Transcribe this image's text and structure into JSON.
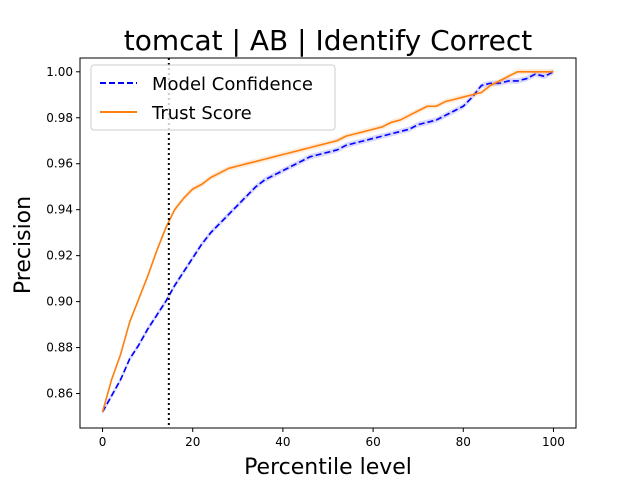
{
  "chart_data": {
    "type": "line",
    "title": "tomcat | AB | Identify Correct",
    "xlabel": "Percentile level",
    "ylabel": "Precision",
    "xlim": [
      -5,
      105
    ],
    "ylim": [
      0.845,
      1.006
    ],
    "xticks": [
      0,
      20,
      40,
      60,
      80,
      100
    ],
    "yticks": [
      0.86,
      0.88,
      0.9,
      0.92,
      0.94,
      0.96,
      0.98,
      1.0
    ],
    "xtick_labels": [
      "0",
      "20",
      "40",
      "60",
      "80",
      "100"
    ],
    "ytick_labels": [
      "0.86",
      "0.88",
      "0.90",
      "0.92",
      "0.94",
      "0.96",
      "0.98",
      "1.00"
    ],
    "grid": false,
    "legend_position": "upper-left",
    "vline": {
      "x": 14.7,
      "style": "dotted",
      "color": "#000000"
    },
    "series": [
      {
        "name": "Model Confidence",
        "color": "#0000ff",
        "style": "dashed",
        "x": [
          0,
          2,
          4,
          6,
          8,
          10,
          12,
          14,
          16,
          18,
          20,
          22,
          24,
          26,
          28,
          30,
          32,
          34,
          36,
          38,
          40,
          42,
          44,
          46,
          48,
          50,
          52,
          54,
          56,
          58,
          60,
          62,
          64,
          66,
          68,
          70,
          72,
          74,
          76,
          78,
          80,
          82,
          84,
          86,
          88,
          90,
          92,
          94,
          96,
          98,
          100
        ],
        "values": [
          0.852,
          0.859,
          0.866,
          0.875,
          0.881,
          0.888,
          0.894,
          0.9,
          0.907,
          0.913,
          0.919,
          0.925,
          0.93,
          0.934,
          0.938,
          0.942,
          0.946,
          0.95,
          0.953,
          0.955,
          0.957,
          0.959,
          0.961,
          0.963,
          0.964,
          0.965,
          0.966,
          0.968,
          0.969,
          0.97,
          0.971,
          0.972,
          0.973,
          0.974,
          0.975,
          0.977,
          0.978,
          0.979,
          0.981,
          0.983,
          0.985,
          0.989,
          0.994,
          0.995,
          0.995,
          0.996,
          0.996,
          0.997,
          0.999,
          0.998,
          1.0
        ]
      },
      {
        "name": "Trust Score",
        "color": "#ff7f0e",
        "style": "solid",
        "x": [
          0,
          2,
          4,
          6,
          8,
          10,
          12,
          14,
          16,
          18,
          20,
          22,
          24,
          26,
          28,
          30,
          32,
          34,
          36,
          38,
          40,
          42,
          44,
          46,
          48,
          50,
          52,
          54,
          56,
          58,
          60,
          62,
          64,
          66,
          68,
          70,
          72,
          74,
          76,
          78,
          80,
          82,
          84,
          86,
          88,
          90,
          92,
          94,
          96,
          98,
          100
        ],
        "values": [
          0.852,
          0.866,
          0.877,
          0.891,
          0.901,
          0.911,
          0.922,
          0.932,
          0.94,
          0.945,
          0.949,
          0.951,
          0.954,
          0.956,
          0.958,
          0.959,
          0.96,
          0.961,
          0.962,
          0.963,
          0.964,
          0.965,
          0.966,
          0.967,
          0.968,
          0.969,
          0.97,
          0.972,
          0.973,
          0.974,
          0.975,
          0.976,
          0.978,
          0.979,
          0.981,
          0.983,
          0.985,
          0.985,
          0.987,
          0.988,
          0.989,
          0.99,
          0.991,
          0.994,
          0.996,
          0.998,
          1.0,
          1.0,
          1.0,
          1.0,
          1.0
        ]
      }
    ]
  }
}
